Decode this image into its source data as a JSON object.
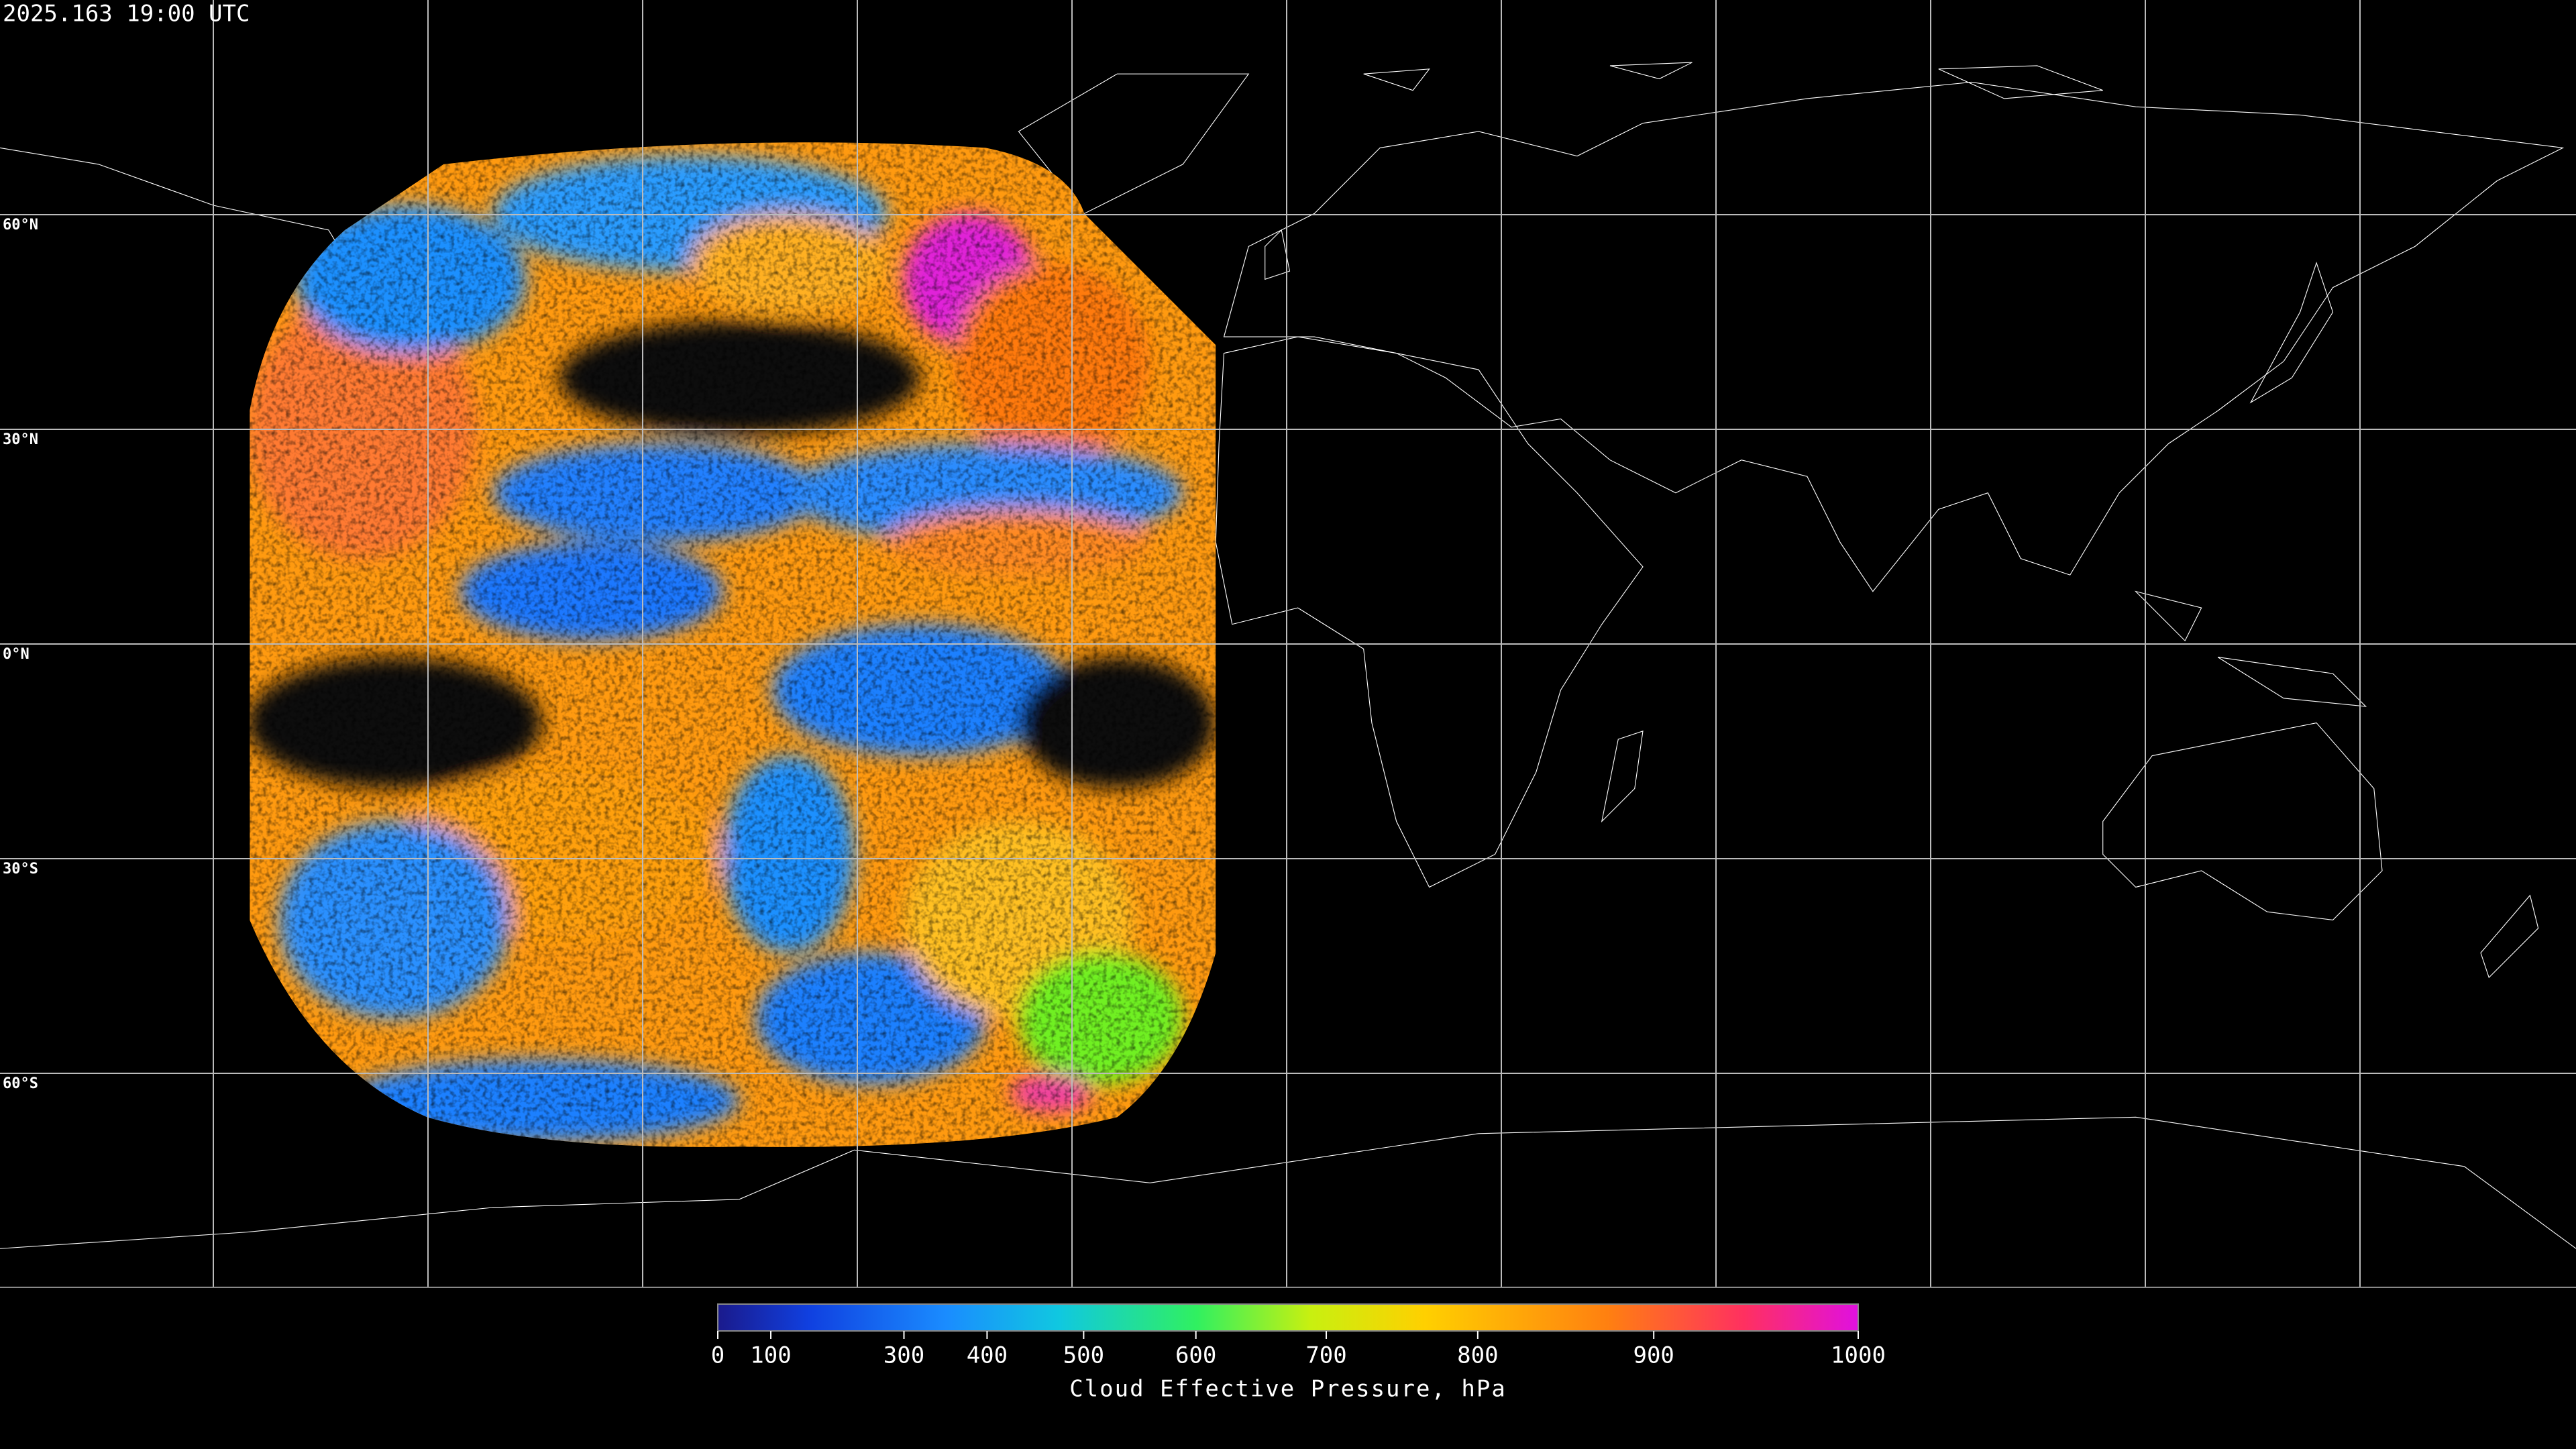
{
  "timestamp": "2025.163 19:00 UTC",
  "latitude_labels": [
    "60°N",
    "30°N",
    "0°N",
    "30°S",
    "60°S"
  ],
  "colorbar": {
    "label": "Cloud Effective Pressure, hPa",
    "range": [
      0,
      1000
    ],
    "ticks": [
      0,
      100,
      300,
      400,
      500,
      600,
      700,
      800,
      900,
      1000
    ]
  }
}
